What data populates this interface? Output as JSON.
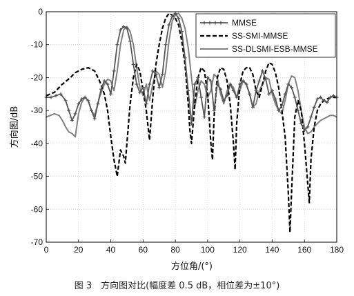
{
  "caption": "图 3　方向图对比(幅度差 0.5 dB，相位差为±10°)",
  "chart_data": {
    "type": "line",
    "xlabel": "方位角/(°)",
    "ylabel": "方向图/dB",
    "xlim": [
      0,
      180
    ],
    "ylim": [
      -70,
      0
    ],
    "xticks": [
      0,
      20,
      40,
      60,
      80,
      100,
      120,
      140,
      160,
      180
    ],
    "yticks": [
      0,
      -10,
      -20,
      -30,
      -40,
      -50,
      -60,
      -70
    ],
    "grid": true,
    "legend_position": "top-right",
    "series": [
      {
        "name": "MMSE",
        "color": "#555555",
        "style": "solid-plus-markers",
        "x": [
          0,
          3,
          6,
          9,
          12,
          14,
          16,
          18,
          20,
          22,
          24,
          26,
          28,
          30,
          32,
          34,
          36,
          38,
          40,
          42,
          44,
          46,
          48,
          50,
          52,
          54,
          56,
          58,
          60,
          62,
          64,
          66,
          68,
          70,
          72,
          74,
          76,
          78,
          80,
          82,
          84,
          86,
          88,
          90,
          92,
          94,
          96,
          98,
          100,
          102,
          104,
          106,
          108,
          110,
          112,
          114,
          116,
          118,
          120,
          122,
          124,
          126,
          128,
          130,
          132,
          134,
          136,
          138,
          140,
          142,
          144,
          146,
          148,
          150,
          152,
          154,
          156,
          158,
          160,
          162,
          164,
          166,
          168,
          170,
          172,
          174,
          176,
          178,
          180
        ],
        "y": [
          -26,
          -26,
          -25.5,
          -25,
          -27,
          -30,
          -33,
          -31,
          -28,
          -26.5,
          -26,
          -27,
          -30,
          -32.5,
          -28,
          -23.5,
          -21,
          -22,
          -25,
          -18,
          -10,
          -5.5,
          -4.5,
          -5,
          -9,
          -16,
          -22,
          -24.5,
          -23,
          -28,
          -22,
          -18,
          -19,
          -23,
          -19,
          -10,
          -4,
          -1.5,
          -0.5,
          -2,
          -6,
          -14,
          -24,
          -34,
          -22,
          -20,
          -26,
          -32,
          -20,
          -21,
          -30,
          -22,
          -23.5,
          -27,
          -25.5,
          -22,
          -24,
          -26,
          -22,
          -21,
          -22,
          -25,
          -29,
          -24,
          -21,
          -18,
          -20.5,
          -25,
          -24,
          -26.5,
          -30,
          -28.5,
          -25,
          -22,
          -23,
          -26,
          -30,
          -34,
          -36,
          -35,
          -32,
          -29,
          -26.5,
          -26,
          -27,
          -27.5,
          -26,
          -25.5,
          -26
        ]
      },
      {
        "name": "SS-SMI-MMSE",
        "color": "#000000",
        "style": "dashed",
        "x": [
          0,
          5,
          10,
          15,
          18,
          22,
          26,
          30,
          33,
          36,
          38,
          40,
          42,
          44,
          46,
          48,
          49,
          50,
          52,
          54,
          56,
          58,
          60,
          62,
          64,
          66,
          68,
          70,
          72,
          74,
          76,
          78,
          80,
          82,
          84,
          86,
          88,
          89,
          90,
          92,
          94,
          96,
          98,
          100,
          102,
          103,
          104,
          106,
          108,
          110,
          112,
          114,
          116,
          117,
          118,
          120,
          122,
          124,
          126,
          128,
          130,
          132,
          134,
          136,
          138,
          140,
          142,
          144,
          146,
          148,
          150,
          151,
          152,
          154,
          156,
          158,
          160,
          162,
          163,
          164,
          166,
          168,
          170,
          172,
          174,
          176,
          178,
          180
        ],
        "y": [
          -25.5,
          -24.5,
          -22,
          -20,
          -18.5,
          -17.5,
          -17,
          -18,
          -21,
          -25,
          -30,
          -38,
          -45,
          -50,
          -42,
          -44,
          -46,
          -40,
          -28,
          -20,
          -16,
          -18,
          -24,
          -30,
          -39,
          -26,
          -16,
          -10,
          -5,
          -2,
          -0.5,
          -1,
          -2,
          -4,
          -9,
          -16,
          -28,
          -36,
          -40,
          -28,
          -20,
          -17,
          -18,
          -25,
          -40,
          -45,
          -32,
          -20,
          -17,
          -17.5,
          -21,
          -28,
          -40,
          -48,
          -34,
          -22,
          -18,
          -17,
          -17,
          -19,
          -24,
          -26,
          -22,
          -18,
          -15.5,
          -16,
          -18.5,
          -23,
          -30,
          -38,
          -55,
          -67,
          -55,
          -32,
          -27,
          -30,
          -40,
          -52,
          -58,
          -45,
          -35,
          -30,
          -28,
          -27,
          -26.5,
          -26,
          -26,
          -26
        ]
      },
      {
        "name": "SS-DLSMI-ESB-MMSE",
        "color": "#808080",
        "style": "solid",
        "x": [
          0,
          5,
          8,
          10,
          12,
          14,
          16,
          18,
          20,
          22,
          24,
          26,
          28,
          30,
          33,
          36,
          38,
          40,
          42,
          44,
          46,
          48,
          50,
          52,
          54,
          56,
          58,
          60,
          62,
          64,
          66,
          68,
          70,
          72,
          74,
          76,
          78,
          80,
          82,
          84,
          86,
          88,
          90,
          92,
          94,
          96,
          98,
          100,
          102,
          104,
          106,
          108,
          110,
          112,
          114,
          116,
          118,
          120,
          122,
          124,
          126,
          128,
          130,
          132,
          134,
          136,
          138,
          140,
          142,
          144,
          146,
          148,
          150,
          152,
          154,
          156,
          158,
          160,
          162,
          164,
          166,
          168,
          170,
          172,
          174,
          176,
          178,
          180
        ],
        "y": [
          -32,
          -31,
          -31.5,
          -33,
          -35,
          -36.5,
          -37,
          -38,
          -31,
          -27.5,
          -26,
          -27,
          -30,
          -31.5,
          -26,
          -22,
          -20.5,
          -21,
          -24,
          -18,
          -10,
          -5.5,
          -4.5,
          -6,
          -10,
          -17,
          -23,
          -25.5,
          -22,
          -27,
          -22,
          -18,
          -19,
          -23,
          -18,
          -9,
          -3,
          -1,
          -0.5,
          -2,
          -5,
          -11,
          -20,
          -29,
          -24,
          -21,
          -22,
          -26,
          -24,
          -19,
          -20,
          -25,
          -28,
          -24,
          -22,
          -23,
          -26,
          -24,
          -21,
          -22,
          -25,
          -29,
          -28,
          -24,
          -22,
          -20,
          -20.5,
          -25,
          -28,
          -30,
          -31,
          -27,
          -22,
          -19.5,
          -20,
          -24,
          -30,
          -35,
          -37,
          -36.5,
          -35,
          -34,
          -33,
          -32.5,
          -32,
          -31.5,
          -31.5,
          -32
        ]
      }
    ]
  }
}
